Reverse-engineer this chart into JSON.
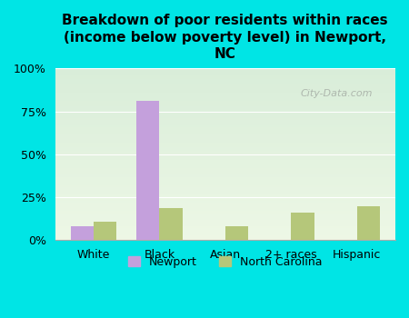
{
  "title": "Breakdown of poor residents within races\n(income below poverty level) in Newport,\nNC",
  "categories": [
    "White",
    "Black",
    "Asian",
    "2+ races",
    "Hispanic"
  ],
  "newport_values": [
    8,
    81,
    0,
    0,
    0
  ],
  "nc_values": [
    11,
    19,
    8,
    16,
    20
  ],
  "newport_color": "#c4a0dc",
  "nc_color": "#b5c77a",
  "background_outer": "#00e5e5",
  "ylim": [
    0,
    100
  ],
  "yticks": [
    0,
    25,
    50,
    75,
    100
  ],
  "ytick_labels": [
    "0%",
    "25%",
    "50%",
    "75%",
    "100%"
  ],
  "legend_labels": [
    "Newport",
    "North Carolina"
  ],
  "watermark": "City-Data.com",
  "bar_width": 0.35
}
